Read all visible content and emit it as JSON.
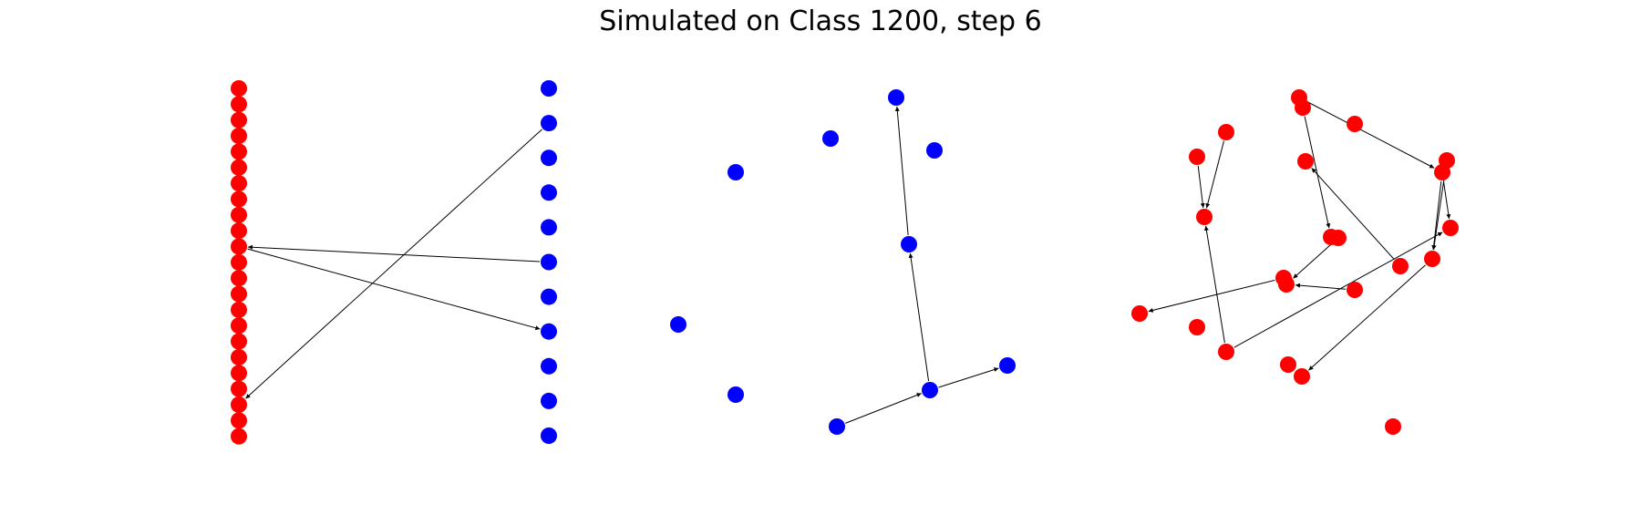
{
  "title": "Simulated on Class 1200, step 6",
  "colors": {
    "red": "#ff0000",
    "blue": "#0000ff",
    "edge": "#000000"
  },
  "panels": [
    {
      "name": "bipartite-layout",
      "groups": [
        {
          "name": "red-column",
          "color": "red",
          "count": 23
        },
        {
          "name": "blue-column",
          "color": "blue",
          "count": 11
        }
      ],
      "edges": [
        {
          "from": "blue-column.1",
          "to": "red-column.20"
        },
        {
          "from": "blue-column.5",
          "to": "red-column.10"
        },
        {
          "from": "red-column.10",
          "to": "blue-column.7"
        }
      ]
    },
    {
      "name": "blue-graph",
      "color": "blue",
      "node_count": 10,
      "edges": [
        {
          "from": "n3",
          "to": "n0"
        },
        {
          "from": "n7",
          "to": "n3"
        },
        {
          "from": "n8",
          "to": "n7"
        },
        {
          "from": "n7",
          "to": "n9"
        }
      ]
    },
    {
      "name": "red-graph",
      "color": "red",
      "node_count": 22,
      "edges": [
        {
          "from": "n0",
          "to": "n7"
        },
        {
          "from": "n1",
          "to": "n9"
        },
        {
          "from": "n2",
          "to": "n0"
        },
        {
          "from": "n2",
          "to": "n10"
        },
        {
          "from": "n4",
          "to": "n13"
        },
        {
          "from": "n5",
          "to": "n9"
        },
        {
          "from": "n7",
          "to": "n8"
        },
        {
          "from": "n7",
          "to": "n13"
        },
        {
          "from": "n12",
          "to": "n6"
        },
        {
          "from": "n14",
          "to": "n14b"
        },
        {
          "from": "n15",
          "to": "n16"
        },
        {
          "from": "n11",
          "to": "n16"
        },
        {
          "from": "n18",
          "to": "n9"
        },
        {
          "from": "n18",
          "to": "n8"
        },
        {
          "from": "n13",
          "to": "n20"
        }
      ]
    }
  ]
}
